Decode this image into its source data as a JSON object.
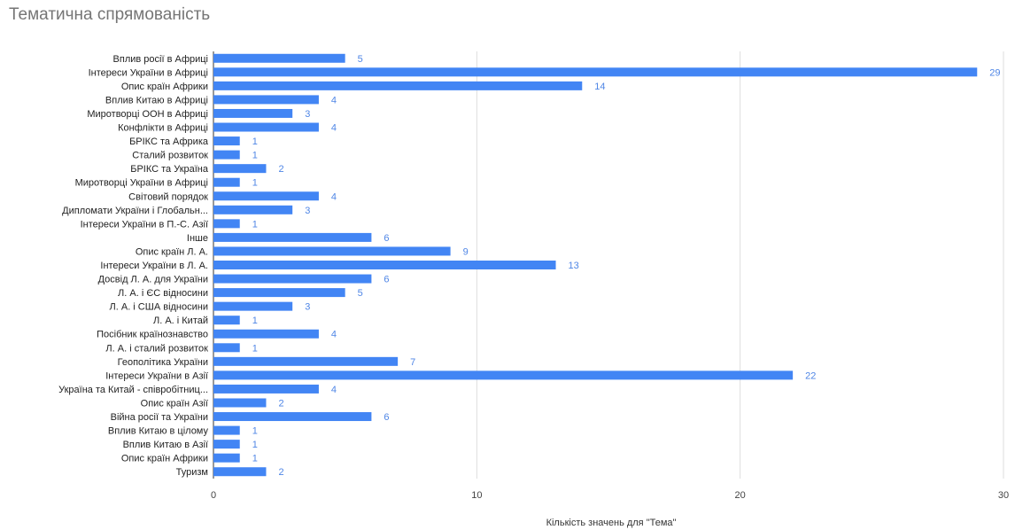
{
  "chart_data": {
    "type": "bar",
    "orientation": "horizontal",
    "title": "Тематична спрямованість",
    "xlabel": "Кількість значень для \"Тема\"",
    "ylabel": "",
    "xlim": [
      0,
      30
    ],
    "xticks": [
      0,
      10,
      20,
      30
    ],
    "grid": true,
    "legend": "none",
    "bar_color": "#4285f4",
    "label_color": "#4f86e6",
    "categories": [
      "Вплив росії в Африці",
      "Інтереси України в Африці",
      "Опис країн Африки",
      "Вплив Китаю в Африці",
      "Миротворці ООН в Африці",
      "Конфлікти в Африці",
      "БРІКС та Африка",
      "Сталий розвиток",
      "БРІКС та Україна",
      "Миротворці України в Африці",
      "Світовий порядок",
      "Дипломати України і Глобальн...",
      "Інтереси України в П.-С. Азії",
      "Інше",
      "Опис країн Л. А.",
      "Інтереси України в Л. А.",
      "Досвід Л. А. для України",
      "Л. А. і ЄС відносини",
      "Л. А. і США відносини",
      "Л. А. і Китай",
      "Посібник країнознавство",
      "Л. А. і сталий розвиток",
      "Геополітика України",
      "Інтереси України в Азії",
      "Україна та Китай - співробітниц...",
      "Опис країн Азії",
      "Війна росії та України",
      "Вплив Китаю в цілому",
      "Вплив Китаю в Азії",
      "Опис країн Африки",
      "Туризм"
    ],
    "values": [
      5,
      29,
      14,
      4,
      3,
      4,
      1,
      1,
      2,
      1,
      4,
      3,
      1,
      6,
      9,
      13,
      6,
      5,
      3,
      1,
      4,
      1,
      7,
      22,
      4,
      2,
      6,
      1,
      1,
      1,
      2
    ]
  }
}
